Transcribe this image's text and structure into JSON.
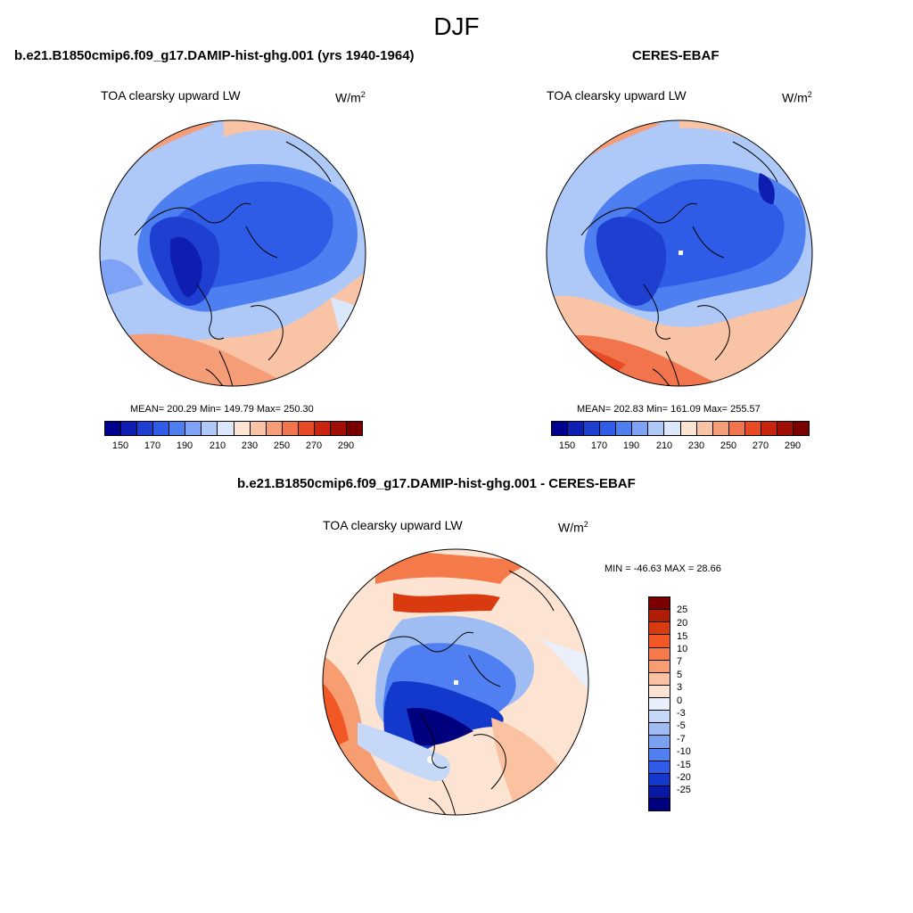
{
  "season": "DJF",
  "variable": "TOA clearsky upward LW",
  "units_base": "W/m",
  "units_exp": "2",
  "model_panel": {
    "title": "b.e21.B1850cmip6.f09_g17.DAMIP-hist-ghg.001 (yrs 1940-1964)",
    "stats": "MEAN= 200.29  Min= 149.79  Max= 250.30"
  },
  "obs_panel": {
    "title": "CERES-EBAF",
    "stats": "MEAN= 202.83  Min= 161.09  Max= 255.57"
  },
  "diff_panel": {
    "title": "b.e21.B1850cmip6.f09_g17.DAMIP-hist-ghg.001 - CERES-EBAF",
    "stats": "MIN = -46.63 MAX =  28.66"
  },
  "abs_colorbar": {
    "colors": [
      "#00008f",
      "#0d1eb0",
      "#1f3fd0",
      "#2e5ce6",
      "#4e7ff0",
      "#7ea2f5",
      "#aec8f8",
      "#dbe8fb",
      "#fde3d1",
      "#f9c3a5",
      "#f59d77",
      "#f1744c",
      "#e74a25",
      "#c82410",
      "#a00e06",
      "#7a0000"
    ],
    "ticks": [
      "150",
      "170",
      "190",
      "210",
      "230",
      "250",
      "270",
      "290"
    ]
  },
  "diff_colorbar": {
    "colors": [
      "#7a0000",
      "#b01c05",
      "#d93a0f",
      "#f25826",
      "#f47a4a",
      "#f79d72",
      "#fac2a0",
      "#fde3d1",
      "#e9f0fb",
      "#c6d8f7",
      "#9fbdf3",
      "#7aa1ef",
      "#4f7ff0",
      "#2e5ce6",
      "#1238cc",
      "#0818a4",
      "#00007e"
    ],
    "ticks": [
      "25",
      "20",
      "15",
      "10",
      "7",
      "5",
      "3",
      "0",
      "-3",
      "-5",
      "-7",
      "-10",
      "-15",
      "-20",
      "-25"
    ]
  },
  "chart_data": [
    {
      "type": "heatmap",
      "title": "b.e21.B1850cmip6.f09_g17.DAMIP-hist-ghg.001 (yrs 1940-1964)",
      "subtitle": "TOA clearsky upward LW",
      "units": "W/m2",
      "mean": 200.29,
      "min": 149.79,
      "max": 250.3,
      "levels": [
        150,
        160,
        170,
        180,
        190,
        200,
        210,
        220,
        230,
        240,
        250,
        260,
        270,
        280,
        290
      ]
    },
    {
      "type": "heatmap",
      "title": "CERES-EBAF",
      "subtitle": "TOA clearsky upward LW",
      "units": "W/m2",
      "mean": 202.83,
      "min": 161.09,
      "max": 255.57,
      "levels": [
        150,
        160,
        170,
        180,
        190,
        200,
        210,
        220,
        230,
        240,
        250,
        260,
        270,
        280,
        290
      ]
    },
    {
      "type": "heatmap",
      "title": "b.e21.B1850cmip6.f09_g17.DAMIP-hist-ghg.001 - CERES-EBAF",
      "subtitle": "TOA clearsky upward LW",
      "units": "W/m2",
      "min": -46.63,
      "max": 28.66,
      "levels": [
        -25,
        -20,
        -15,
        -10,
        -7,
        -5,
        -3,
        0,
        3,
        5,
        7,
        10,
        15,
        20,
        25
      ]
    }
  ]
}
